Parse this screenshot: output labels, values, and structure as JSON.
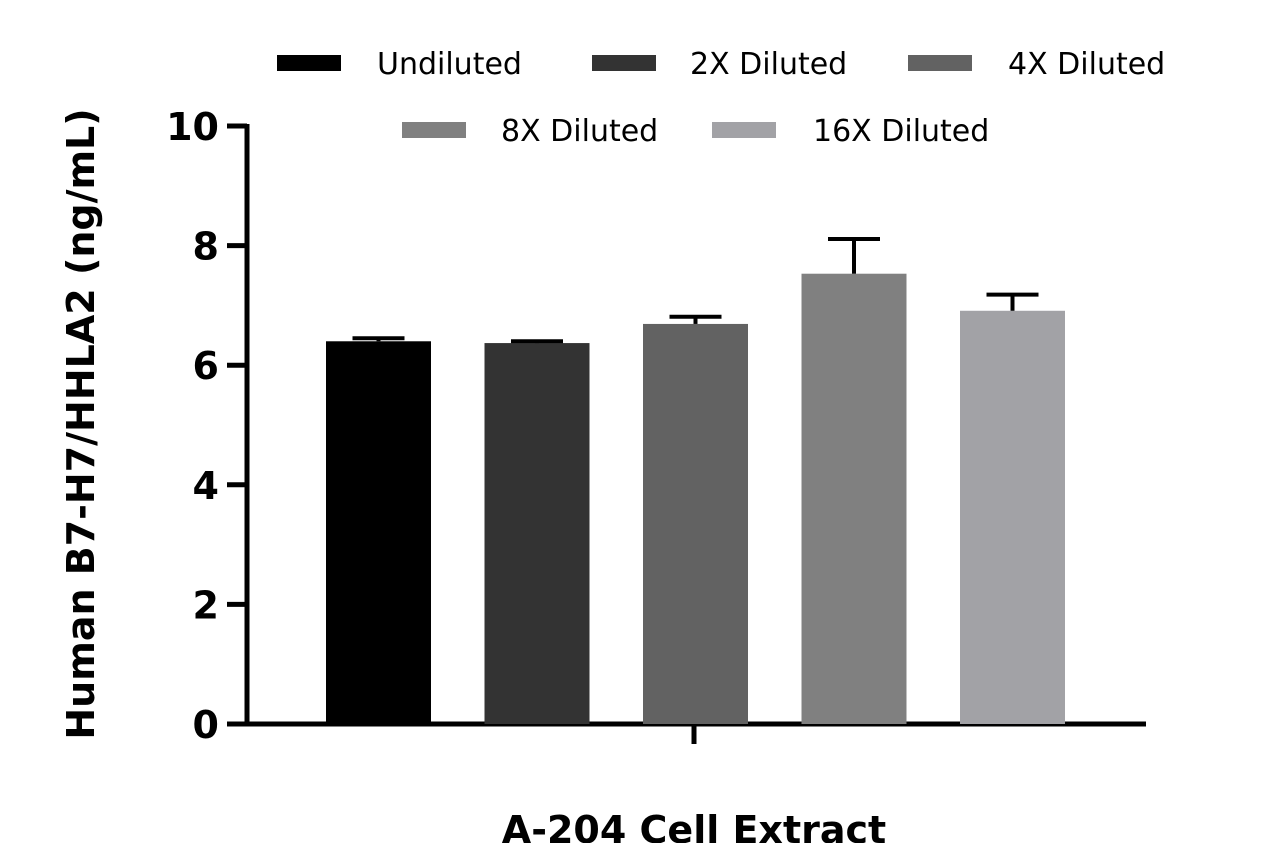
{
  "chart_data": {
    "type": "bar",
    "title": "",
    "xlabel": "A-204 Cell Extract",
    "ylabel": "Human B7-H7/HHLA2 (ng/mL)",
    "ylim": [
      0,
      10
    ],
    "yticks": [
      "0",
      "2",
      "4",
      "6",
      "8",
      "10"
    ],
    "ytick_values": [
      0,
      2,
      4,
      6,
      8,
      10
    ],
    "categories": [
      "A-204 Cell Extract"
    ],
    "legend_position": "top",
    "series": [
      {
        "name": "Undiluted",
        "values": [
          6.4
        ],
        "error": [
          0.05
        ],
        "color": "#000000"
      },
      {
        "name": "2X Diluted",
        "values": [
          6.37
        ],
        "error": [
          0.03
        ],
        "color": "#333333"
      },
      {
        "name": "4X Diluted",
        "values": [
          6.69
        ],
        "error": [
          0.12
        ],
        "color": "#626262"
      },
      {
        "name": "8X Diluted",
        "values": [
          7.53
        ],
        "error": [
          0.58
        ],
        "color": "#808080"
      },
      {
        "name": "16X Diluted",
        "values": [
          6.91
        ],
        "error": [
          0.27
        ],
        "color": "#a2a2a6"
      }
    ]
  }
}
